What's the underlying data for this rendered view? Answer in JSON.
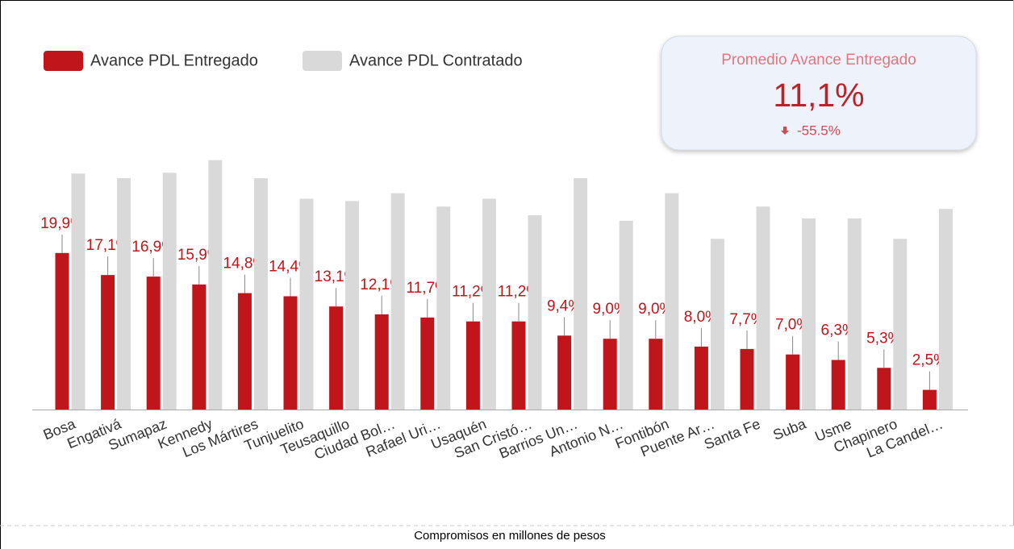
{
  "chart_data": {
    "type": "bar",
    "categories": [
      "Bosa",
      "Engativá",
      "Sumapaz",
      "Kennedy",
      "Los Mártires",
      "Tunjuelito",
      "Teusaquillo",
      "Ciudad Bol…",
      "Rafael Uri…",
      "Usaquén",
      "San Cristó…",
      "Barrios Un…",
      "Antonio N…",
      "Fontibón",
      "Puente Ar…",
      "Santa Fe",
      "Suba",
      "Usme",
      "Chapinero",
      "La Candel…"
    ],
    "series": [
      {
        "name": "Avance PDL Entregado",
        "color": "#c0151b",
        "values": [
          19.9,
          17.1,
          16.9,
          15.9,
          14.8,
          14.4,
          13.1,
          12.1,
          11.7,
          11.2,
          11.2,
          9.4,
          9.0,
          9.0,
          8.0,
          7.7,
          7.0,
          6.3,
          5.3,
          2.5
        ],
        "value_labels": [
          "19,9%",
          "17,1%",
          "16,9%",
          "15,9%",
          "14,8%",
          "14,4%",
          "13,1%",
          "12,1%",
          "11,7%",
          "11,2%",
          "11,2%",
          "9,4%",
          "9,0%",
          "9,0%",
          "8,0%",
          "7,7%",
          "7,0%",
          "6,3%",
          "5,3%",
          "2,5%"
        ]
      },
      {
        "name": "Avance PDL Contratado",
        "color": "#d9d9d9",
        "values": [
          30.0,
          29.4,
          30.1,
          31.7,
          29.4,
          26.8,
          26.5,
          27.5,
          25.8,
          26.8,
          24.7,
          29.4,
          24.0,
          27.5,
          21.7,
          25.8,
          24.3,
          24.3,
          21.7,
          25.5
        ]
      }
    ],
    "ylim": [
      0,
      33
    ],
    "footer": "Compromisos en millones de pesos"
  },
  "kpi": {
    "title": "Promedio Avance Entregado",
    "value": "11,1%",
    "delta": "-55.5%"
  }
}
